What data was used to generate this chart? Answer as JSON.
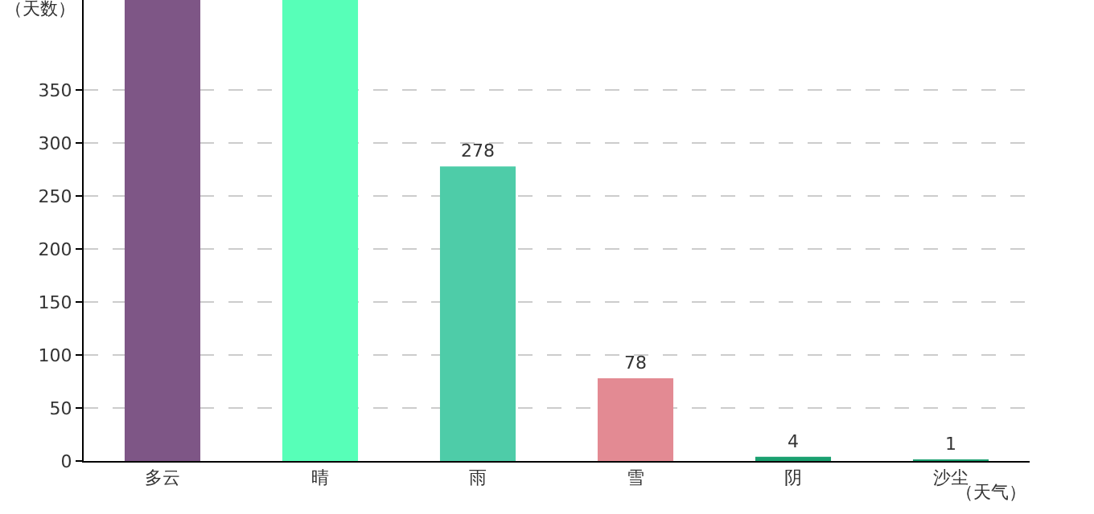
{
  "chart_data": {
    "type": "bar",
    "ylabel": "（天数）",
    "xlabel": "（天气）",
    "categories": [
      "多云",
      "晴",
      "雨",
      "雪",
      "阴",
      "沙尘"
    ],
    "values": [
      435,
      435,
      278,
      78,
      4,
      1
    ],
    "value_labels": [
      null,
      null,
      "278",
      "78",
      "4",
      "1"
    ],
    "colors": [
      "#7e5686",
      "#57ffb8",
      "#4ecca8",
      "#e38a93",
      "#1aa070",
      "#1aa070"
    ],
    "ylim": [
      0,
      435
    ],
    "yticks": [
      0,
      50,
      100,
      150,
      200,
      250,
      300,
      350
    ],
    "grid": "y"
  }
}
